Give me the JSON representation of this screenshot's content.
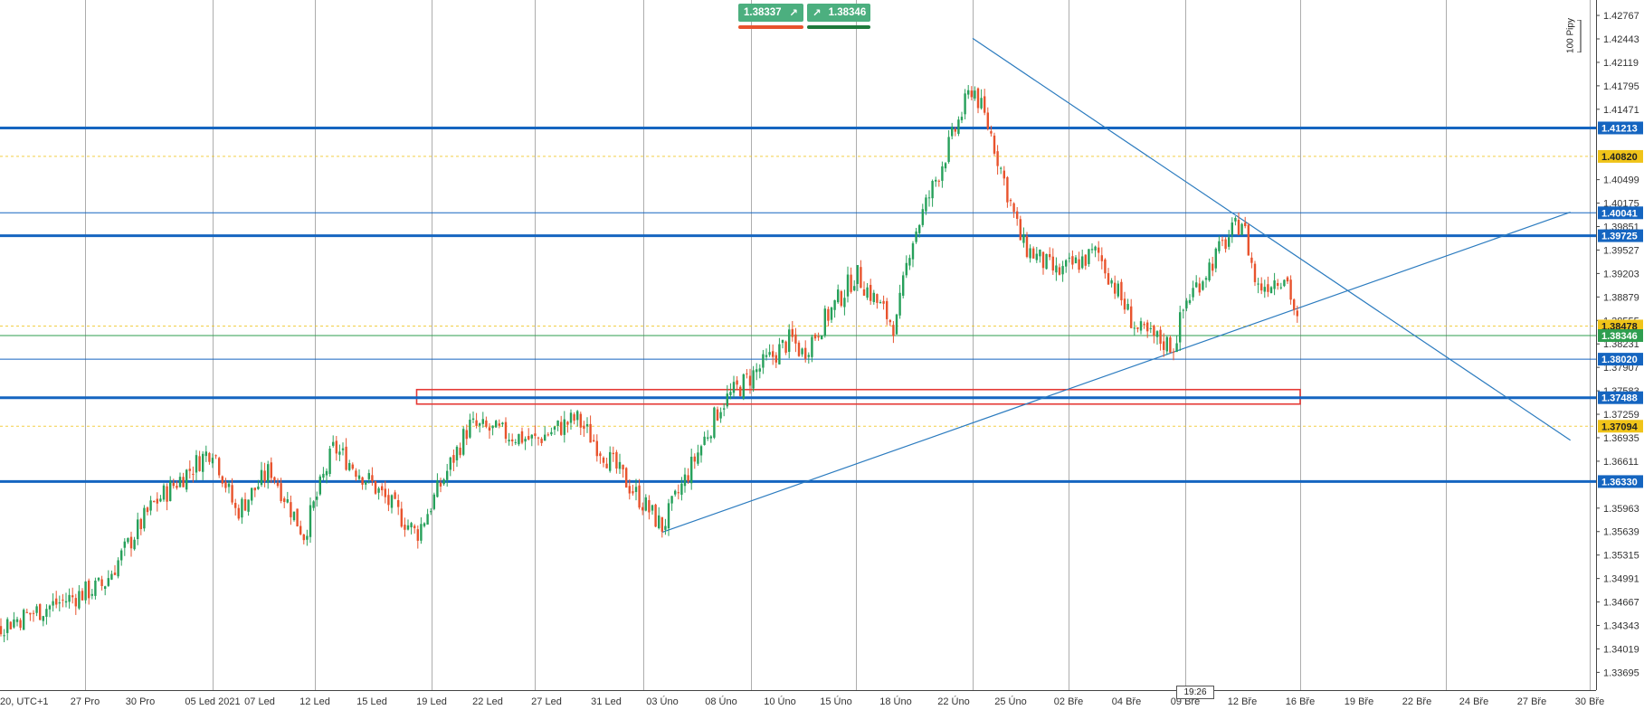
{
  "trade_panel": {
    "sell_price": "1.38337",
    "buy_price": "1.38346",
    "sell_icon": "arrow-up-right-icon",
    "buy_icon": "arrow-up-right-icon",
    "sell_bar_color": "#e8532d",
    "buy_bar_color": "#1f7a3c"
  },
  "pip_scale_label": "100 Pipy",
  "current_time_label": "19:26",
  "colors": {
    "up_candle": "#26a05a",
    "down_candle": "#e8532d",
    "level_line": "#1565c0",
    "trend_line": "#2b7bbf",
    "badge_blue": "#1565c0",
    "badge_yellow": "#f0c419",
    "current_price_line": "#2e9e4f",
    "zone_box": "#e53935"
  },
  "chart_data": {
    "type": "candlestick",
    "symbol_timeframe_label": "20, UTC+1",
    "ylim": [
      1.3345,
      1.4298
    ],
    "y_ticks": [
      "1.42767",
      "1.42443",
      "1.42119",
      "1.41795",
      "1.41471",
      "1.40499",
      "1.40175",
      "1.39851",
      "1.39527",
      "1.39203",
      "1.38879",
      "1.38555",
      "1.38231",
      "1.37907",
      "1.37583",
      "1.37259",
      "1.36935",
      "1.36611",
      "1.35963",
      "1.35639",
      "1.35315",
      "1.34991",
      "1.34667",
      "1.34343",
      "1.34019",
      "1.33695"
    ],
    "x_labels": [
      "20, UTC+1",
      "27 Pro",
      "30 Pro",
      "05 Led 2021",
      "07 Led",
      "12 Led",
      "15 Led",
      "19 Led",
      "22 Led",
      "27 Led",
      "31 Led",
      "03 Úno",
      "08 Úno",
      "10 Úno",
      "15 Úno",
      "18 Úno",
      "22 Úno",
      "25 Úno",
      "02 Bře",
      "04 Bře",
      "09 Bře",
      "12 Bře",
      "16 Bře",
      "19 Bře",
      "22 Bře",
      "24 Bře",
      "27 Bře",
      "30 Bře"
    ],
    "horizontal_levels": [
      {
        "price": 1.41213,
        "label": "1.41213",
        "style": "thick",
        "badge": "blue"
      },
      {
        "price": 1.4082,
        "label": "1.40820",
        "style": "dotted",
        "badge": "yellow"
      },
      {
        "price": 1.40041,
        "label": "1.40041",
        "style": "thin",
        "badge": "blue"
      },
      {
        "price": 1.39725,
        "label": "1.39725",
        "style": "thick",
        "badge": "blue"
      },
      {
        "price": 1.38478,
        "label": "1.38478",
        "style": "dotted",
        "badge": "yellow"
      },
      {
        "price": 1.38346,
        "label": "1.38346",
        "style": "current",
        "badge": "green"
      },
      {
        "price": 1.3802,
        "label": "1.38020",
        "style": "thin",
        "badge": "blue"
      },
      {
        "price": 1.37488,
        "label": "1.37488",
        "style": "thick",
        "badge": "blue"
      },
      {
        "price": 1.37094,
        "label": "1.37094",
        "style": "dotted",
        "badge": "yellow"
      },
      {
        "price": 1.3633,
        "label": "1.36330",
        "style": "thick",
        "badge": "blue"
      }
    ],
    "trend_lines": [
      {
        "from": {
          "x": "03 Úno",
          "y": 1.3563
        },
        "to": {
          "x": "29 Bře",
          "y": 1.4005
        }
      },
      {
        "from": {
          "x": "23 Úno",
          "y": 1.4245
        },
        "to": {
          "x": "29 Bře",
          "y": 1.369
        }
      }
    ],
    "zone": {
      "from_x": "18 Led",
      "to_x": "16 Bře",
      "y_top": 1.376,
      "y_bottom": 1.374
    },
    "close_path": [
      {
        "x": "18 Pro",
        "y": 1.3365
      },
      {
        "x": "21 Pro",
        "y": 1.342
      },
      {
        "x": "28 Pro",
        "y": 1.349
      },
      {
        "x": "31 Pro",
        "y": 1.36
      },
      {
        "x": "05 Led",
        "y": 1.368
      },
      {
        "x": "06 Led",
        "y": 1.359
      },
      {
        "x": "08 Led",
        "y": 1.365
      },
      {
        "x": "11 Led",
        "y": 1.356
      },
      {
        "x": "13 Led",
        "y": 1.368
      },
      {
        "x": "15 Led",
        "y": 1.363
      },
      {
        "x": "18 Led",
        "y": 1.356
      },
      {
        "x": "21 Led",
        "y": 1.371
      },
      {
        "x": "26 Led",
        "y": 1.369
      },
      {
        "x": "29 Led",
        "y": 1.372
      },
      {
        "x": "03 Úno",
        "y": 1.357
      },
      {
        "x": "08 Úno",
        "y": 1.374
      },
      {
        "x": "11 Úno",
        "y": 1.383
      },
      {
        "x": "12 Úno",
        "y": 1.381
      },
      {
        "x": "16 Úno",
        "y": 1.392
      },
      {
        "x": "18 Úno",
        "y": 1.3845
      },
      {
        "x": "19 Úno",
        "y": 1.396
      },
      {
        "x": "23 Úno",
        "y": 1.418
      },
      {
        "x": "24 Úno",
        "y": 1.411
      },
      {
        "x": "26 Úno",
        "y": 1.396
      },
      {
        "x": "01 Bře",
        "y": 1.392
      },
      {
        "x": "03 Bře",
        "y": 1.395
      },
      {
        "x": "04 Bře",
        "y": 1.387
      },
      {
        "x": "05 Bře",
        "y": 1.384
      },
      {
        "x": "08 Bře",
        "y": 1.382
      },
      {
        "x": "09 Bře",
        "y": 1.388
      },
      {
        "x": "11 Bře",
        "y": 1.396
      },
      {
        "x": "12 Bře",
        "y": 1.3995
      },
      {
        "x": "13 Bře",
        "y": 1.39
      },
      {
        "x": "15 Bře",
        "y": 1.392
      },
      {
        "x": "16 Bře",
        "y": 1.3834
      }
    ],
    "grid": true,
    "grid_style": "vertical-date-dividers",
    "price_axis_side": "right"
  }
}
